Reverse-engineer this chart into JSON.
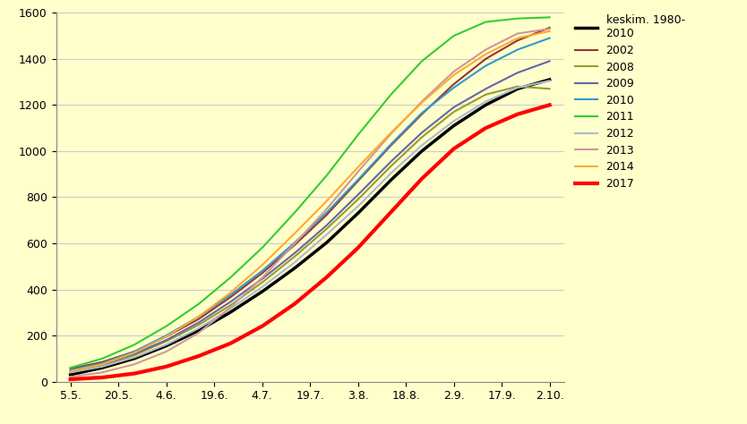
{
  "background_color": "#ffffcc",
  "x_labels": [
    "5.5.",
    "20.5.",
    "4.6.",
    "19.6.",
    "4.7.",
    "19.7.",
    "3.8.",
    "18.8.",
    "2.9.",
    "17.9.",
    "2.10."
  ],
  "ylim": [
    0,
    1600
  ],
  "yticks": [
    0,
    200,
    400,
    600,
    800,
    1000,
    1200,
    1400,
    1600
  ],
  "series": {
    "keskim. 1980-2010": {
      "color": "#000000",
      "linewidth": 2.5,
      "values": [
        30,
        60,
        100,
        155,
        220,
        300,
        390,
        490,
        600,
        730,
        870,
        1000,
        1110,
        1200,
        1270,
        1310
      ]
    },
    "2002": {
      "color": "#993333",
      "linewidth": 1.5,
      "values": [
        55,
        85,
        130,
        195,
        270,
        365,
        470,
        590,
        720,
        870,
        1020,
        1160,
        1290,
        1400,
        1480,
        1535
      ]
    },
    "2008": {
      "color": "#999933",
      "linewidth": 1.5,
      "values": [
        40,
        70,
        115,
        175,
        245,
        330,
        430,
        540,
        660,
        790,
        930,
        1060,
        1170,
        1245,
        1280,
        1270
      ]
    },
    "2009": {
      "color": "#6666aa",
      "linewidth": 1.5,
      "values": [
        45,
        75,
        120,
        180,
        255,
        345,
        445,
        555,
        675,
        810,
        950,
        1080,
        1190,
        1270,
        1340,
        1390
      ]
    },
    "2010": {
      "color": "#3399cc",
      "linewidth": 1.5,
      "values": [
        50,
        80,
        130,
        200,
        280,
        375,
        480,
        600,
        730,
        875,
        1025,
        1165,
        1275,
        1370,
        1440,
        1490
      ]
    },
    "2011": {
      "color": "#33cc33",
      "linewidth": 1.5,
      "values": [
        60,
        100,
        160,
        240,
        335,
        450,
        580,
        730,
        890,
        1070,
        1240,
        1390,
        1500,
        1560,
        1575,
        1580
      ]
    },
    "2012": {
      "color": "#aabbcc",
      "linewidth": 1.5,
      "values": [
        40,
        65,
        105,
        160,
        230,
        315,
        410,
        515,
        635,
        760,
        900,
        1025,
        1130,
        1215,
        1275,
        1305
      ]
    },
    "2013": {
      "color": "#cc9999",
      "linewidth": 1.5,
      "values": [
        20,
        40,
        75,
        130,
        210,
        320,
        450,
        595,
        745,
        910,
        1070,
        1215,
        1345,
        1440,
        1510,
        1530
      ]
    },
    "2014": {
      "color": "#ffaa33",
      "linewidth": 1.5,
      "values": [
        45,
        75,
        125,
        195,
        280,
        385,
        505,
        640,
        780,
        930,
        1075,
        1210,
        1330,
        1420,
        1490,
        1520
      ]
    },
    "2017": {
      "color": "#ff0000",
      "linewidth": 3.0,
      "values": [
        10,
        18,
        35,
        65,
        110,
        165,
        240,
        335,
        450,
        580,
        730,
        880,
        1010,
        1100,
        1160,
        1200
      ]
    }
  },
  "legend_order": [
    "keskim. 1980-2010",
    "2002",
    "2008",
    "2009",
    "2010",
    "2011",
    "2012",
    "2013",
    "2014",
    "2017"
  ],
  "legend_label_map": {
    "keskim. 1980-2010": "keskim. 1980-\n2010",
    "2002": "2002",
    "2008": "2008",
    "2009": "2009",
    "2010": "2010",
    "2011": "2011",
    "2012": "2012",
    "2013": "2013",
    "2014": "2014",
    "2017": "2017"
  },
  "figsize": [
    8.34,
    4.74
  ],
  "dpi": 100
}
